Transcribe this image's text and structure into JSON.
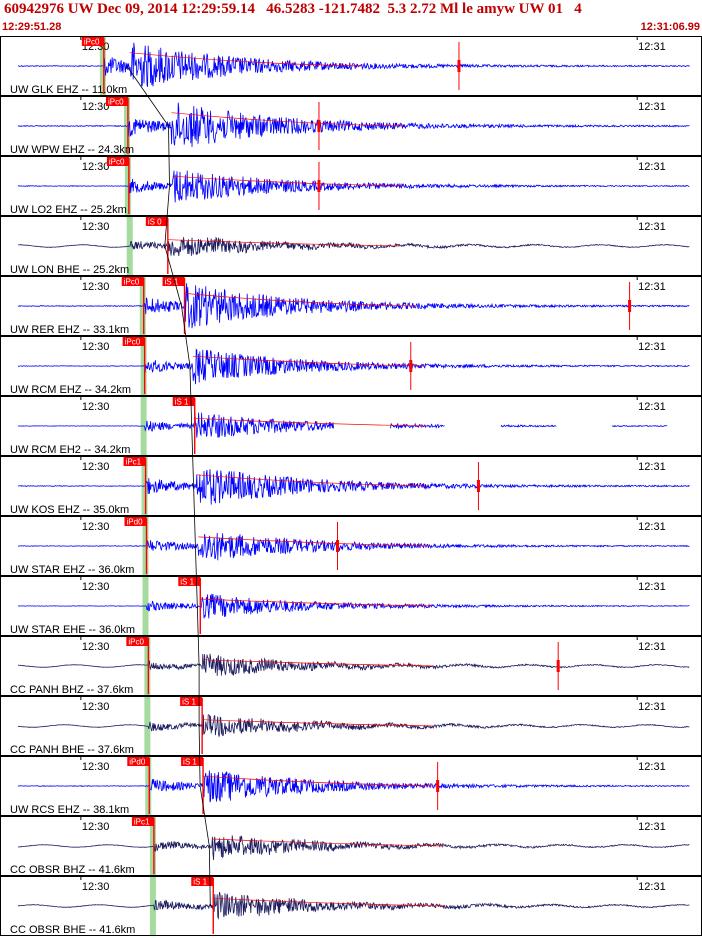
{
  "header": {
    "title": "60942976 UW Dec 09, 2014 12:29:59.14   46.5283 -121.7482  5.3 2.72 Ml le amyw UW 01   4",
    "start_time": "12:29:51.28",
    "end_time": "12:31:06.99"
  },
  "colors": {
    "border": "#000000",
    "trace_blue": "#0000ff",
    "trace_dark": "#1a1a5e",
    "pick_red": "#ff0000",
    "theory_green": "#a6dba0",
    "header_red": "#c00000"
  },
  "chart_data": {
    "type": "line",
    "title": "60942976 UW Dec 09, 2014 12:29:59.14   46.5283 -121.7482  5.3 2.72 Ml le amyw UW 01   4",
    "x_start": "12:29:51.28",
    "x_end": "12:31:06.99",
    "xlim_seconds": [
      0,
      75.71
    ],
    "origin_time_seconds": 7.86,
    "minute_ticks": [
      {
        "label": "12:30",
        "t": 8.72
      },
      {
        "label": "12:31",
        "t": 68.72
      }
    ],
    "traces": [
      {
        "label": "UW GLK EHZ -- 11.0km",
        "color": "blue",
        "pick_labels": [
          "iPc0"
        ],
        "p_time": 11.2,
        "s_time": 14.0,
        "amp": 0.95,
        "spike_time": 49.5
      },
      {
        "label": "UW WPW EHZ -- 24.3km",
        "color": "blue",
        "pick_labels": [
          "iPc0"
        ],
        "p_time": 13.8,
        "s_time": 18.5,
        "amp": 0.95,
        "spike_time": 34.4
      },
      {
        "label": "UW LO2 EHZ -- 25.2km",
        "color": "blue",
        "pick_labels": [
          "iPc0"
        ],
        "p_time": 13.9,
        "s_time": 18.6,
        "amp": 0.7,
        "spike_time": 34.4
      },
      {
        "label": "UW LON BHE -- 25.2km",
        "color": "dark",
        "pick_labels": [
          "iS 0"
        ],
        "p_time": 14.1,
        "s_time": 18.1,
        "amp": 0.45,
        "spike_time": null
      },
      {
        "label": "UW RER EHZ -- 33.1km",
        "color": "blue",
        "pick_labels": [
          "iPc0",
          "iS 1"
        ],
        "p_time": 15.5,
        "s_time": 19.9,
        "amp": 0.9,
        "spike_time": 67.9
      },
      {
        "label": "UW RCM EHZ -- 34.2km",
        "color": "blue",
        "pick_labels": [
          "iPc0"
        ],
        "p_time": 15.6,
        "s_time": 20.8,
        "amp": 0.7,
        "spike_time": 44.3
      },
      {
        "label": "UW RCM EH2 -- 34.2km",
        "color": "blue",
        "pick_labels": [
          "iS 1"
        ],
        "p_time": 15.6,
        "s_time": 21.0,
        "amp": 0.55,
        "spike_time": null,
        "dropouts": true
      },
      {
        "label": "UW KOS EHZ -- 35.0km",
        "color": "blue",
        "pick_labels": [
          "iPc1"
        ],
        "p_time": 15.7,
        "s_time": 21.2,
        "amp": 0.8,
        "spike_time": 51.6
      },
      {
        "label": "UW STAR EHZ -- 36.0km",
        "color": "blue",
        "pick_labels": [
          "iPd0"
        ],
        "p_time": 15.8,
        "s_time": 21.4,
        "amp": 0.65,
        "spike_time": 36.4
      },
      {
        "label": "UW STAR EHE -- 36.0km",
        "color": "blue",
        "pick_labels": [
          "iS 1"
        ],
        "p_time": 15.8,
        "s_time": 21.6,
        "amp": 0.5,
        "spike_time": null
      },
      {
        "label": "CC PANH BHZ -- 37.6km",
        "color": "dark",
        "pick_labels": [
          "iPc0"
        ],
        "p_time": 16.0,
        "s_time": 21.8,
        "amp": 0.45,
        "spike_time": 60.2
      },
      {
        "label": "CC PANH BHE -- 37.6km",
        "color": "dark",
        "pick_labels": [
          "iS 1"
        ],
        "p_time": 16.0,
        "s_time": 21.8,
        "amp": 0.45,
        "spike_time": null
      },
      {
        "label": "UW RCS EHZ -- 38.1km",
        "color": "blue",
        "pick_labels": [
          "iPd0",
          "iS 1"
        ],
        "p_time": 16.1,
        "s_time": 21.9,
        "amp": 0.7,
        "spike_time": 47.2
      },
      {
        "label": "CC OBSR BHZ -- 41.6km",
        "color": "dark",
        "pick_labels": [
          "iPc1"
        ],
        "p_time": 16.6,
        "s_time": 22.9,
        "amp": 0.5,
        "spike_time": null
      },
      {
        "label": "CC OBSR BHE -- 41.6km",
        "color": "dark",
        "pick_labels": [
          "iS 1"
        ],
        "p_time": 16.6,
        "s_time": 23.0,
        "amp": 0.55,
        "spike_time": null
      }
    ]
  }
}
